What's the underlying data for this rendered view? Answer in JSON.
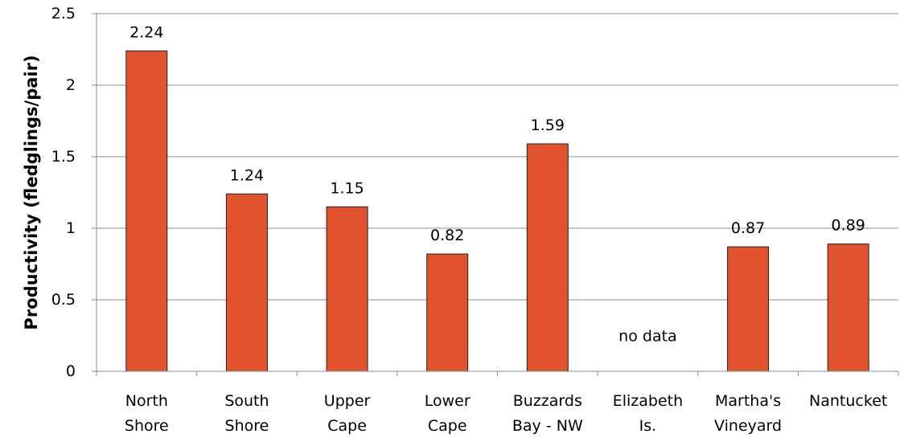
{
  "chart_data": {
    "type": "bar",
    "title": "",
    "xlabel": "",
    "ylabel": "Productivity (fledglings/pair)",
    "ylim": [
      0,
      2.5
    ],
    "yticks": [
      "0",
      "0.5",
      "1",
      "1.5",
      "2",
      "2.5"
    ],
    "ytick_values": [
      0,
      0.5,
      1,
      1.5,
      2,
      2.5
    ],
    "grid": true,
    "legend": "none",
    "bar_color": "#e0532d",
    "categories": [
      [
        "North",
        "Shore"
      ],
      [
        "South",
        "Shore"
      ],
      [
        "Upper",
        "Cape"
      ],
      [
        "Lower",
        "Cape"
      ],
      [
        "Buzzards",
        "Bay - NW"
      ],
      [
        "Elizabeth",
        "Is."
      ],
      [
        "Martha's",
        "Vineyard"
      ],
      [
        "Nantucket"
      ]
    ],
    "values": [
      2.24,
      1.24,
      1.15,
      0.82,
      1.59,
      null,
      0.87,
      0.89
    ],
    "data_labels": [
      "2.24",
      "1.24",
      "1.15",
      "0.82",
      "1.59",
      "no data",
      "0.87",
      "0.89"
    ]
  }
}
